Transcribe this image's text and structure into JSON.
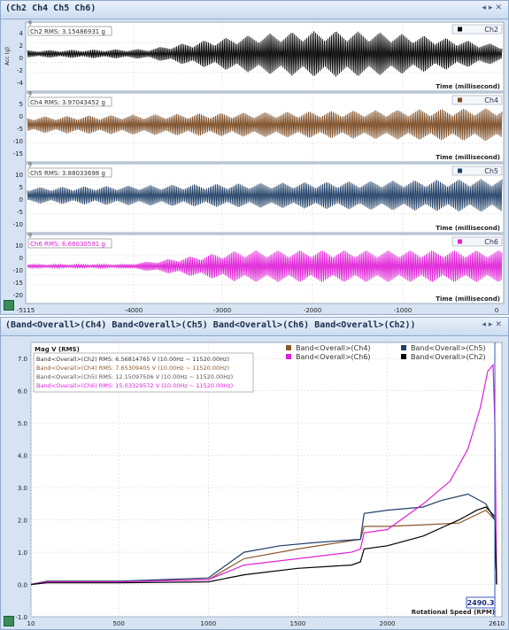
{
  "top_panel": {
    "title": "(Ch2 Ch4 Ch5 Ch6)",
    "header_buttons": [
      "◂",
      "▸",
      "✕"
    ],
    "x_ticks": [
      "-5115",
      "-4000",
      "-3000",
      "-2000",
      "-1000",
      "0"
    ],
    "channels": [
      {
        "legend": "Ch2",
        "rms": "Ch2 RMS: 3.15486931 g",
        "color": "#000000",
        "yticks": [
          "4",
          "2",
          "0",
          "-2",
          "-4"
        ],
        "ylabel": "Acc (g)",
        "xlabel": "Time (millisecond)",
        "menu": "g"
      },
      {
        "legend": "Ch4",
        "rms": "Ch4 RMS: 3.97043452 g",
        "color": "#7a4a22",
        "yticks": [
          "5",
          "0",
          "-5",
          "-10",
          "-15"
        ],
        "ylabel": "",
        "xlabel": "Time (millisecond)",
        "menu": "g"
      },
      {
        "legend": "Ch5",
        "rms": "Ch5 RMS: 3.88033698 g",
        "color": "#1f3f66",
        "yticks": [
          "10",
          "5",
          "0",
          "-5",
          "-10"
        ],
        "ylabel": "",
        "xlabel": "Time (millisecond)",
        "menu": "g"
      },
      {
        "legend": "Ch6",
        "rms": "Ch6 RMS: 6.66030591 g",
        "color": "#e020d8",
        "yticks": [
          "10",
          "0",
          "-10",
          "-15",
          "-20"
        ],
        "ylabel": "",
        "xlabel": "Time (millisecond)",
        "menu": "g"
      }
    ]
  },
  "bottom_panel": {
    "title": "(Band<Overall>(Ch4) Band<Overall>(Ch5) Band<Overall>(Ch6) Band<Overall>(Ch2))",
    "header_buttons": [
      "◂",
      "▸",
      "✕"
    ],
    "ylabel": "Mag V (RMS)",
    "xlabel": "Rotational Speed (RPM)",
    "cursor_value": "2490.3",
    "legend": [
      {
        "name": "Band<Overall>(Ch4)",
        "color": "#8b5a2b"
      },
      {
        "name": "Band<Overall>(Ch5)",
        "color": "#1f3f66"
      },
      {
        "name": "Band<Overall>(Ch6)",
        "color": "#e020d8"
      },
      {
        "name": "Band<Overall>(Ch2)",
        "color": "#000000"
      }
    ],
    "rms_lines": [
      {
        "text": "Band<Overall>(Ch2) RMS: 6.56814765 V (10.00Hz ~ 11520.00Hz)",
        "color": "#333333"
      },
      {
        "text": "Band<Overall>(Ch4) RMS: 7.65309405 V (10.00Hz ~ 11520.00Hz)",
        "color": "#8b5a2b"
      },
      {
        "text": "Band<Overall>(Ch5) RMS: 12.15097506 V (10.00Hz ~ 11520.00Hz)",
        "color": "#555555"
      },
      {
        "text": "Band<Overall>(Ch6) RMS: 15.03329572 V (10.00Hz ~ 11520.00Hz)",
        "color": "#e020d8"
      }
    ]
  },
  "chart_data": {
    "type": "line",
    "title": "",
    "xlabel": "Rotational Speed (RPM)",
    "ylabel": "Mag V (RMS)",
    "xlim": [
      10,
      2610
    ],
    "ylim": [
      -1.0,
      7.5
    ],
    "x_ticks": [
      10,
      500,
      1000,
      1500,
      2000,
      2610
    ],
    "y_ticks": [
      -1.0,
      0.0,
      1.0,
      2.0,
      3.0,
      4.0,
      5.0,
      6.0,
      7.0
    ],
    "grid": true,
    "legend_position": "top-right",
    "series": [
      {
        "name": "Band<Overall>(Ch4)",
        "color": "#8b5a2b",
        "x": [
          10,
          100,
          500,
          1000,
          1200,
          1500,
          1850,
          1870,
          2000,
          2200,
          2400,
          2550,
          2600,
          2610
        ],
        "y": [
          0.0,
          0.1,
          0.1,
          0.15,
          0.8,
          1.1,
          1.4,
          1.8,
          1.8,
          1.85,
          1.9,
          2.3,
          2.0,
          0.0
        ]
      },
      {
        "name": "Band<Overall>(Ch5)",
        "color": "#1f3f66",
        "x": [
          10,
          100,
          500,
          1000,
          1200,
          1400,
          1600,
          1850,
          1870,
          2000,
          2200,
          2300,
          2450,
          2550,
          2600,
          2610
        ],
        "y": [
          0.0,
          0.1,
          0.1,
          0.2,
          1.0,
          1.2,
          1.3,
          1.4,
          2.2,
          2.3,
          2.4,
          2.6,
          2.8,
          2.5,
          2.0,
          0.0
        ]
      },
      {
        "name": "Band<Overall>(Ch6)",
        "color": "#e020d8",
        "x": [
          10,
          100,
          500,
          1000,
          1200,
          1500,
          1800,
          1850,
          1870,
          2000,
          2200,
          2350,
          2450,
          2520,
          2560,
          2590,
          2600,
          2610
        ],
        "y": [
          0.0,
          0.08,
          0.08,
          0.15,
          0.6,
          0.8,
          1.0,
          1.1,
          1.6,
          1.7,
          2.5,
          3.2,
          4.2,
          5.5,
          6.6,
          6.8,
          5.0,
          0.0
        ]
      },
      {
        "name": "Band<Overall>(Ch2)",
        "color": "#000000",
        "x": [
          10,
          100,
          500,
          1000,
          1200,
          1500,
          1800,
          1850,
          1870,
          2000,
          2200,
          2400,
          2500,
          2550,
          2600,
          2610
        ],
        "y": [
          0.0,
          0.05,
          0.05,
          0.08,
          0.3,
          0.5,
          0.6,
          0.7,
          1.1,
          1.2,
          1.5,
          2.0,
          2.3,
          2.4,
          2.1,
          0.0
        ]
      }
    ]
  }
}
